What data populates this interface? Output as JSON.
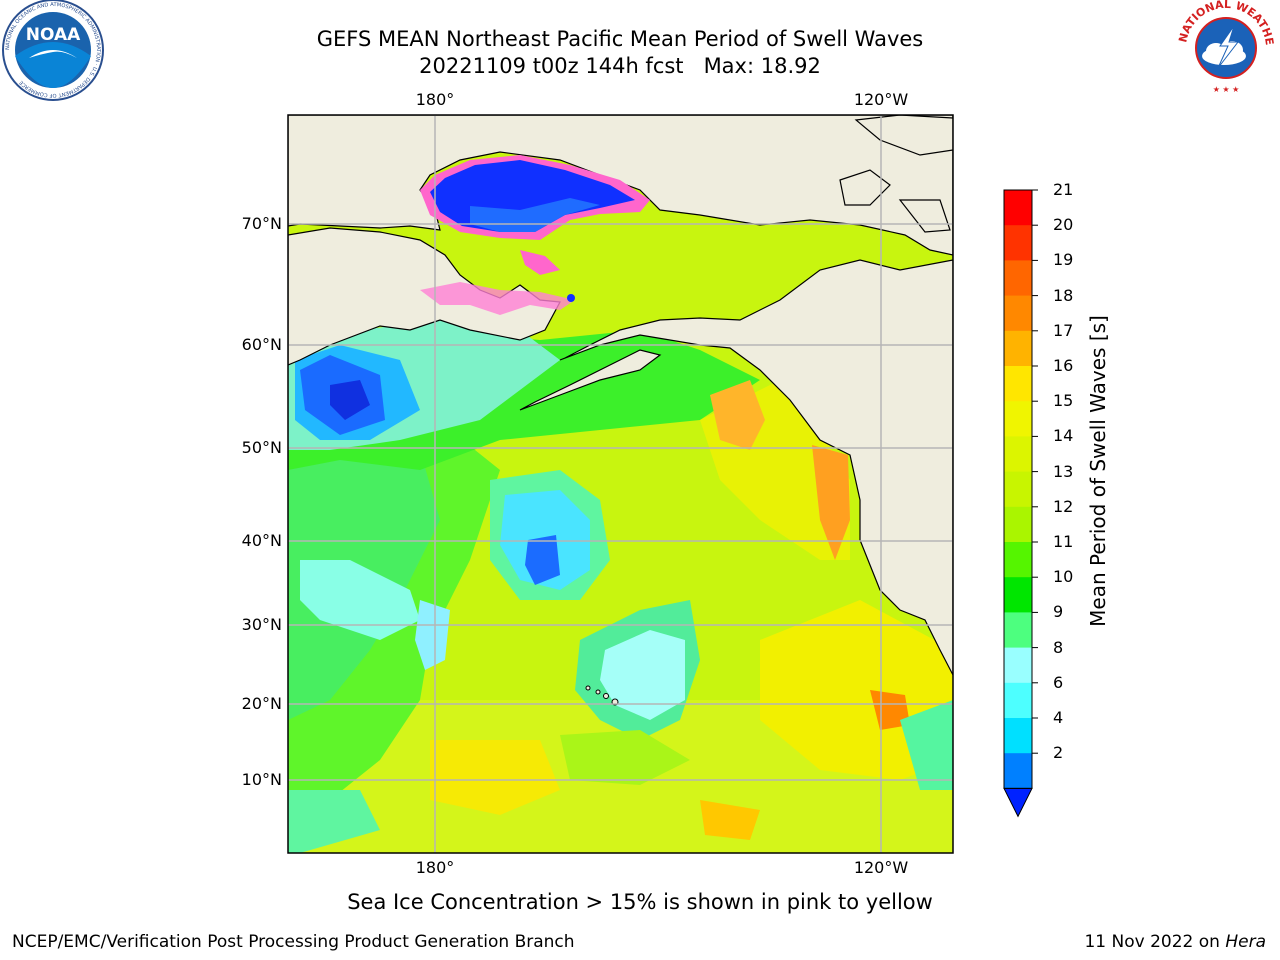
{
  "header": {
    "title": "GEFS MEAN Northeast Pacific Mean Period of Swell Waves",
    "subtitle": "20221109 t00z 144h fcst   Max: 18.92"
  },
  "map": {
    "lon_labels_top": [
      "180°",
      "120°W"
    ],
    "lon_labels_bottom": [
      "180°",
      "120°W"
    ],
    "lat_labels": [
      "70°N",
      "60°N",
      "50°N",
      "40°N",
      "30°N",
      "20°N",
      "10°N"
    ],
    "land_color": "#efedde",
    "grid_color": "#b5b5b5"
  },
  "colorbar": {
    "label": "Mean Period of Swell Waves [s]",
    "ticks": [
      "21",
      "20",
      "19",
      "18",
      "17",
      "16",
      "15",
      "14",
      "13",
      "12",
      "11",
      "10",
      "9",
      "8",
      "6",
      "4",
      "2"
    ],
    "colors": [
      "#ff0000",
      "#ff3300",
      "#ff6600",
      "#ff8800",
      "#ffb300",
      "#ffe600",
      "#f0f500",
      "#dcf500",
      "#c8f500",
      "#aaf500",
      "#55f500",
      "#00e600",
      "#4dff7f",
      "#99ffff",
      "#4dffff",
      "#00e0ff",
      "#0080ff"
    ],
    "extend_color": "#0022ff"
  },
  "footer": {
    "note": "Sea Ice Concentration > 15% is shown in pink to yellow",
    "left": "NCEP/EMC/Verification Post Processing Product Generation Branch",
    "date": "11 Nov 2022 on ",
    "host": "Hera"
  },
  "logos": {
    "noaa_text": "NOAA",
    "noaa_ring": "NATIONAL OCEANIC AND ATMOSPHERIC ADMINISTRATION · U.S. DEPARTMENT OF COMMERCE",
    "nws_ring": "NATIONAL WEATHER SERVICE"
  }
}
